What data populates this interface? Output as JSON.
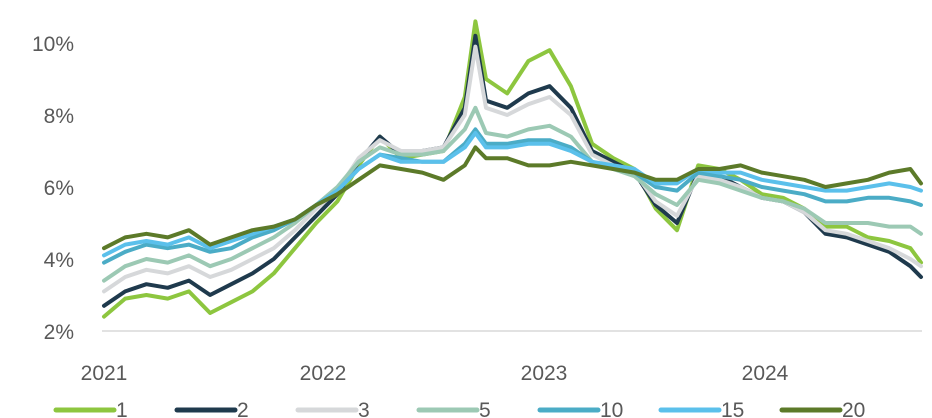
{
  "chart_data": {
    "type": "line",
    "title": "",
    "xlabel": "",
    "ylabel": "",
    "x_ticks": [
      "2021",
      "2022",
      "2023",
      "2024"
    ],
    "y_ticks": [
      "2%",
      "4%",
      "6%",
      "8%",
      "10%"
    ],
    "ylim": [
      2,
      10.5
    ],
    "xlim": [
      2021.0,
      2024.85
    ],
    "grid": false,
    "legend": "bottom",
    "x": [
      2021.0,
      2021.1,
      2021.2,
      2021.3,
      2021.4,
      2021.5,
      2021.6,
      2021.7,
      2021.8,
      2021.9,
      2022.0,
      2022.1,
      2022.2,
      2022.3,
      2022.4,
      2022.5,
      2022.6,
      2022.7,
      2022.75,
      2022.8,
      2022.9,
      2023.0,
      2023.1,
      2023.2,
      2023.3,
      2023.4,
      2023.5,
      2023.6,
      2023.7,
      2023.8,
      2023.9,
      2024.0,
      2024.1,
      2024.2,
      2024.3,
      2024.4,
      2024.5,
      2024.6,
      2024.7,
      2024.8,
      2024.85
    ],
    "series": [
      {
        "name": "1",
        "color": "#8DC63F",
        "values": [
          2.4,
          2.9,
          3.0,
          2.9,
          3.1,
          2.5,
          2.8,
          3.1,
          3.6,
          4.3,
          5.0,
          5.6,
          6.6,
          7.4,
          6.8,
          6.9,
          7.0,
          8.5,
          10.6,
          9.0,
          8.6,
          9.5,
          9.8,
          8.8,
          7.2,
          6.8,
          6.5,
          5.4,
          4.8,
          6.6,
          6.5,
          6.2,
          5.8,
          5.7,
          5.4,
          4.9,
          4.9,
          4.6,
          4.5,
          4.3,
          3.9
        ]
      },
      {
        "name": "2",
        "color": "#1F3A4D",
        "values": [
          2.7,
          3.1,
          3.3,
          3.2,
          3.4,
          3.0,
          3.3,
          3.6,
          4.0,
          4.6,
          5.2,
          5.8,
          6.7,
          7.4,
          6.9,
          7.0,
          7.1,
          8.2,
          10.2,
          8.4,
          8.2,
          8.6,
          8.8,
          8.2,
          7.0,
          6.7,
          6.4,
          5.5,
          5.0,
          6.4,
          6.3,
          6.0,
          5.7,
          5.6,
          5.3,
          4.7,
          4.6,
          4.4,
          4.2,
          3.8,
          3.5
        ]
      },
      {
        "name": "3",
        "color": "#D6D8DA",
        "values": [
          3.1,
          3.5,
          3.7,
          3.6,
          3.8,
          3.5,
          3.7,
          4.0,
          4.3,
          4.8,
          5.4,
          5.9,
          6.8,
          7.3,
          7.0,
          7.0,
          7.1,
          8.0,
          9.9,
          8.2,
          8.0,
          8.3,
          8.5,
          8.0,
          6.9,
          6.6,
          6.4,
          5.6,
          5.2,
          6.3,
          6.2,
          6.0,
          5.7,
          5.6,
          5.3,
          4.8,
          4.7,
          4.5,
          4.3,
          4.0,
          3.8
        ]
      },
      {
        "name": "5",
        "color": "#9CC9B4",
        "values": [
          3.4,
          3.8,
          4.0,
          3.9,
          4.1,
          3.8,
          4.0,
          4.3,
          4.6,
          5.0,
          5.5,
          6.0,
          6.7,
          7.1,
          6.9,
          6.9,
          7.0,
          7.6,
          8.2,
          7.5,
          7.4,
          7.6,
          7.7,
          7.4,
          6.7,
          6.5,
          6.3,
          5.8,
          5.5,
          6.2,
          6.1,
          5.9,
          5.7,
          5.6,
          5.4,
          5.0,
          5.0,
          5.0,
          4.9,
          4.9,
          4.7
        ]
      },
      {
        "name": "10",
        "color": "#4BACC6",
        "values": [
          3.9,
          4.2,
          4.4,
          4.3,
          4.4,
          4.2,
          4.3,
          4.6,
          4.8,
          5.1,
          5.5,
          5.9,
          6.5,
          6.9,
          6.8,
          6.7,
          6.7,
          7.2,
          7.6,
          7.2,
          7.2,
          7.3,
          7.3,
          7.1,
          6.7,
          6.5,
          6.4,
          6.0,
          5.9,
          6.4,
          6.3,
          6.2,
          6.0,
          5.9,
          5.8,
          5.6,
          5.6,
          5.7,
          5.7,
          5.6,
          5.5
        ]
      },
      {
        "name": "15",
        "color": "#5BC0EB",
        "values": [
          4.1,
          4.4,
          4.5,
          4.4,
          4.6,
          4.3,
          4.5,
          4.7,
          4.9,
          5.1,
          5.5,
          5.9,
          6.5,
          6.9,
          6.7,
          6.7,
          6.7,
          7.1,
          7.5,
          7.1,
          7.1,
          7.2,
          7.2,
          7.0,
          6.7,
          6.6,
          6.5,
          6.1,
          6.1,
          6.5,
          6.4,
          6.4,
          6.2,
          6.1,
          6.0,
          5.9,
          5.9,
          6.0,
          6.1,
          6.0,
          5.9
        ]
      },
      {
        "name": "20",
        "color": "#5C7A29",
        "values": [
          4.3,
          4.6,
          4.7,
          4.6,
          4.8,
          4.4,
          4.6,
          4.8,
          4.9,
          5.1,
          5.5,
          5.8,
          6.2,
          6.6,
          6.5,
          6.4,
          6.2,
          6.6,
          7.1,
          6.8,
          6.8,
          6.6,
          6.6,
          6.7,
          6.6,
          6.5,
          6.4,
          6.2,
          6.2,
          6.5,
          6.5,
          6.6,
          6.4,
          6.3,
          6.2,
          6.0,
          6.1,
          6.2,
          6.4,
          6.5,
          6.1
        ]
      }
    ]
  }
}
